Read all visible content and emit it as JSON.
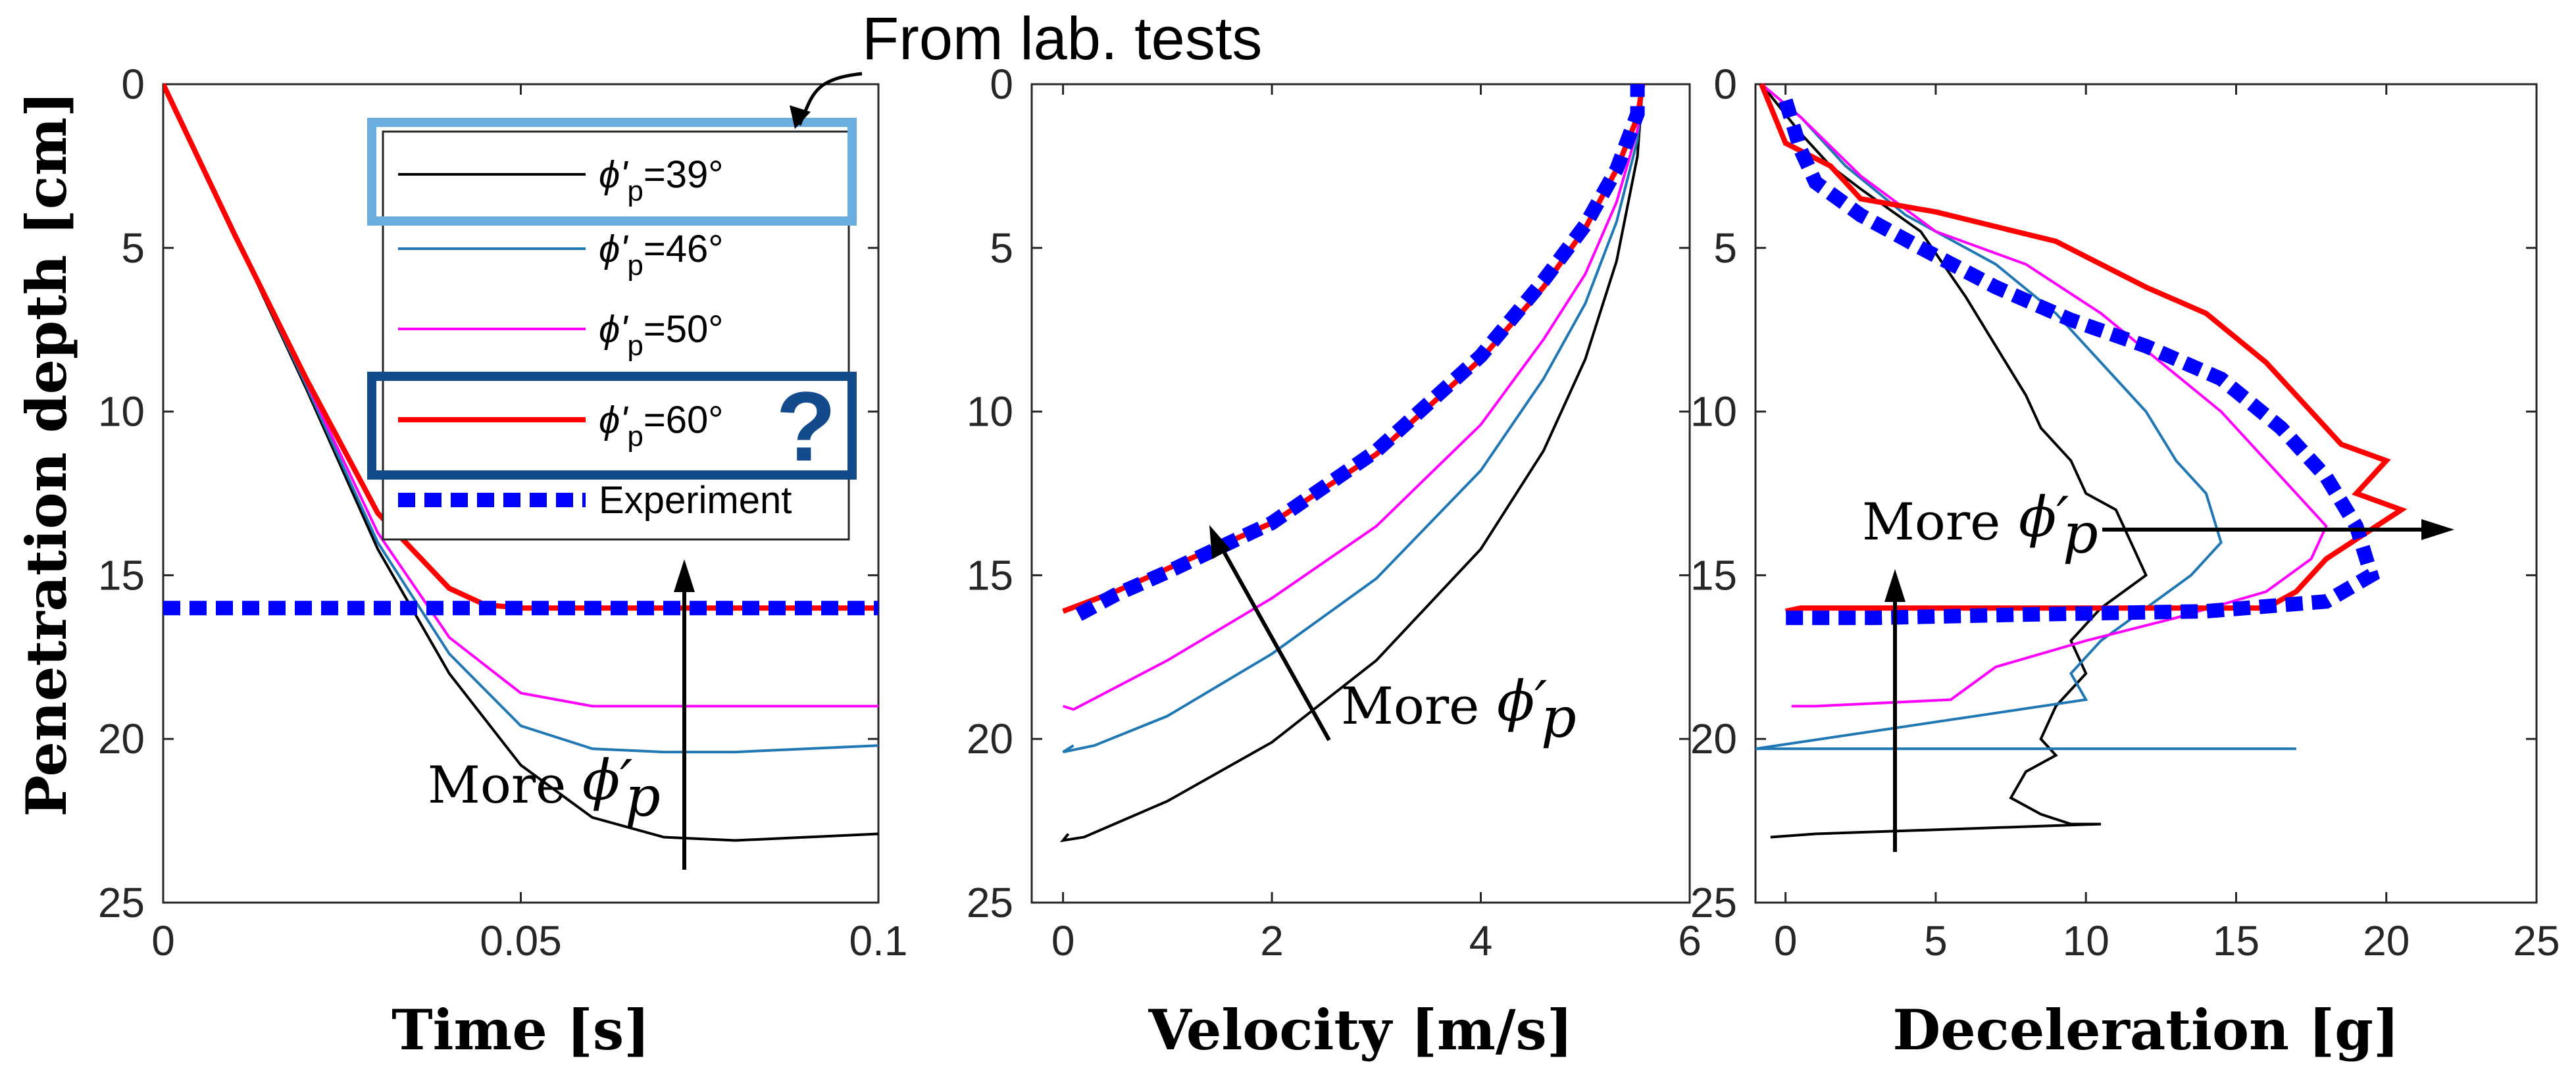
{
  "figure": {
    "annotation_top": "From lab. tests",
    "question_mark": "?",
    "more_phi_text": "More",
    "more_phi_symbol": "ϕ′",
    "more_phi_subscript": "p",
    "ylabel": "Penetration depth [cm]"
  },
  "legend": [
    {
      "prefix": "ϕ'",
      "sub": "p",
      "suffix": "=39°",
      "color": "#000000",
      "style": "solid"
    },
    {
      "prefix": "ϕ'",
      "sub": "p",
      "suffix": "=46°",
      "color": "#1f77b4",
      "style": "solid"
    },
    {
      "prefix": "ϕ'",
      "sub": "p",
      "suffix": "=50°",
      "color": "#ff00ff",
      "style": "solid"
    },
    {
      "prefix": "ϕ'",
      "sub": "p",
      "suffix": "=60°",
      "color": "#ff0000",
      "style": "solid"
    },
    {
      "prefix": "",
      "sub": "",
      "suffix": "Experiment",
      "color": "#0000ff",
      "style": "dotted"
    }
  ],
  "highlight_colors": {
    "lab_box": "#6aaee0",
    "question_box": "#124a8c"
  },
  "chart_data": [
    {
      "type": "line",
      "title": "",
      "xlabel": "Time [s]",
      "ylabel": "Penetration depth [cm]",
      "xlim": [
        0,
        0.1
      ],
      "ylim": [
        25,
        0
      ],
      "xticks": [
        "0",
        "0.05",
        "0.1"
      ],
      "yticks": [
        "0",
        "5",
        "10",
        "15",
        "20",
        "25"
      ],
      "series": [
        {
          "name": "ϕ'p=39°",
          "color": "#000000",
          "x": [
            0,
            0.01,
            0.02,
            0.03,
            0.04,
            0.05,
            0.06,
            0.07,
            0.08,
            0.09,
            0.1
          ],
          "y": [
            0,
            4.6,
            9.3,
            14.2,
            18.0,
            20.8,
            22.4,
            23.0,
            23.1,
            23.0,
            22.9
          ]
        },
        {
          "name": "ϕ'p=46°",
          "color": "#1f77b4",
          "x": [
            0,
            0.01,
            0.02,
            0.03,
            0.04,
            0.05,
            0.06,
            0.07,
            0.08,
            0.09,
            0.1
          ],
          "y": [
            0,
            4.6,
            9.2,
            14.0,
            17.4,
            19.6,
            20.3,
            20.4,
            20.4,
            20.3,
            20.2
          ]
        },
        {
          "name": "ϕ'p=50°",
          "color": "#ff00ff",
          "x": [
            0,
            0.01,
            0.02,
            0.03,
            0.04,
            0.05,
            0.06,
            0.07,
            0.08,
            0.09,
            0.1
          ],
          "y": [
            0,
            4.6,
            9.1,
            13.7,
            16.9,
            18.6,
            19.0,
            19.0,
            19.0,
            19.0,
            19.0
          ]
        },
        {
          "name": "ϕ'p=60°",
          "color": "#ff0000",
          "x": [
            0,
            0.01,
            0.02,
            0.03,
            0.04,
            0.045,
            0.05,
            0.06,
            0.07,
            0.08,
            0.1
          ],
          "y": [
            0,
            4.6,
            9.0,
            13.1,
            15.4,
            15.9,
            16.0,
            16.0,
            16.0,
            16.0,
            16.0
          ]
        },
        {
          "name": "Experiment",
          "color": "#0000ff",
          "dotted": true,
          "x": [
            0,
            0.1
          ],
          "y": [
            16,
            16
          ]
        }
      ]
    },
    {
      "type": "line",
      "title": "",
      "xlabel": "Velocity [m/s]",
      "ylabel": "",
      "xlim": [
        -0.3,
        6
      ],
      "ylim": [
        25,
        0
      ],
      "xticks": [
        "0",
        "2",
        "4",
        "6"
      ],
      "yticks": [
        "0",
        "5",
        "10",
        "15",
        "20",
        "25"
      ],
      "series": [
        {
          "name": "ϕ'p=39°",
          "color": "#000000",
          "x": [
            0.05,
            0.0,
            0.2,
            1.0,
            2.0,
            3.0,
            4.0,
            4.6,
            5.0,
            5.3,
            5.5,
            5.55
          ],
          "y": [
            22.9,
            23.1,
            23.0,
            21.9,
            20.1,
            17.6,
            14.2,
            11.2,
            8.4,
            5.4,
            2.2,
            0
          ]
        },
        {
          "name": "ϕ'p=46°",
          "color": "#1f77b4",
          "x": [
            0.1,
            0.0,
            0.3,
            1.0,
            2.0,
            3.0,
            4.0,
            4.6,
            5.0,
            5.3,
            5.5,
            5.55
          ],
          "y": [
            20.2,
            20.4,
            20.2,
            19.3,
            17.4,
            15.1,
            11.8,
            9.0,
            6.7,
            4.2,
            1.7,
            0
          ]
        },
        {
          "name": "ϕ'p=50°",
          "color": "#ff00ff",
          "x": [
            0.0,
            0.1,
            1.0,
            2.0,
            3.0,
            4.0,
            4.6,
            5.0,
            5.3,
            5.5,
            5.55
          ],
          "y": [
            19.0,
            19.1,
            17.6,
            15.7,
            13.5,
            10.4,
            7.8,
            5.8,
            3.6,
            1.4,
            0
          ]
        },
        {
          "name": "ϕ'p=60°",
          "color": "#ff0000",
          "x": [
            0.0,
            0.5,
            1.0,
            2.0,
            3.0,
            4.0,
            4.6,
            5.0,
            5.3,
            5.5,
            5.55
          ],
          "y": [
            16.1,
            15.5,
            14.8,
            13.4,
            11.3,
            8.4,
            6.2,
            4.4,
            2.6,
            1.0,
            0
          ]
        },
        {
          "name": "Experiment",
          "color": "#0000ff",
          "dotted": true,
          "x": [
            0.15,
            0.5,
            1.0,
            2.0,
            3.0,
            4.0,
            4.6,
            5.0,
            5.3,
            5.5,
            5.5
          ],
          "y": [
            16.2,
            15.6,
            14.9,
            13.4,
            11.2,
            8.3,
            6.0,
            4.3,
            2.6,
            0.9,
            0
          ]
        }
      ]
    },
    {
      "type": "line",
      "title": "",
      "xlabel": "Deceleration [g]",
      "ylabel": "",
      "xlim": [
        -1,
        25
      ],
      "ylim": [
        25,
        0
      ],
      "xticks": [
        "0",
        "5",
        "10",
        "15",
        "20",
        "25"
      ],
      "yticks": [
        "0",
        "5",
        "10",
        "15",
        "20",
        "25"
      ],
      "series": [
        {
          "name": "ϕ'p=39°",
          "color": "#000000",
          "x": [
            -0.8,
            0.5,
            1.5,
            2.5,
            4.5,
            6.0,
            7.0,
            8.0,
            8.5,
            9.5,
            10.0,
            11.0,
            11.5,
            12.0,
            10.5,
            9.5,
            10.0,
            9.0,
            8.5,
            9.0,
            8.0,
            7.5,
            8.5,
            9.5,
            10.5,
            1.0,
            -0.5
          ],
          "y": [
            0,
            1.5,
            2.5,
            3.2,
            4.5,
            6.5,
            8.0,
            9.5,
            10.5,
            11.5,
            12.5,
            13.0,
            14.0,
            15.0,
            16.0,
            17.0,
            18.0,
            19.0,
            20.0,
            20.5,
            21.0,
            21.8,
            22.3,
            22.6,
            22.6,
            22.9,
            23.0
          ]
        },
        {
          "name": "ϕ'p=46°",
          "color": "#1f77b4",
          "x": [
            -0.8,
            0.5,
            2.0,
            4.0,
            7.0,
            9.0,
            10.5,
            12.0,
            13.0,
            14.0,
            14.5,
            13.5,
            12.0,
            10.5,
            9.5,
            10.0,
            -1.0,
            17.0
          ],
          "y": [
            0,
            1.0,
            2.5,
            4.0,
            5.5,
            7.0,
            8.5,
            10.0,
            11.5,
            12.5,
            14.0,
            15.0,
            16.0,
            17.0,
            18.0,
            18.8,
            20.3,
            20.3
          ]
        },
        {
          "name": "ϕ'p=50°",
          "color": "#ff00ff",
          "x": [
            -0.8,
            0.5,
            2.5,
            5.0,
            8.0,
            10.5,
            12.5,
            14.5,
            16.0,
            17.0,
            18.0,
            17.5,
            16.0,
            13.0,
            10.0,
            7.0,
            5.5,
            1.0,
            0.2
          ],
          "y": [
            0,
            1.0,
            2.8,
            4.5,
            5.5,
            7.0,
            8.5,
            10.0,
            11.5,
            12.5,
            13.5,
            14.5,
            15.5,
            16.3,
            17.0,
            17.8,
            18.8,
            19.0,
            19.0
          ]
        },
        {
          "name": "ϕ'p=60°",
          "color": "#ff0000",
          "x": [
            -0.8,
            0.0,
            1.5,
            2.5,
            5.0,
            9.0,
            12.0,
            14.0,
            16.0,
            17.5,
            18.5,
            20.0,
            19.0,
            20.5,
            18.0,
            17.0,
            16.0,
            0.5,
            0.0
          ],
          "y": [
            0,
            1.8,
            2.5,
            3.5,
            3.9,
            4.8,
            6.2,
            7.0,
            8.5,
            10.0,
            11.0,
            11.5,
            12.5,
            13.0,
            14.5,
            15.5,
            16.0,
            16.0,
            16.1
          ]
        },
        {
          "name": "Experiment",
          "color": "#0000ff",
          "dotted": true,
          "x": [
            0.0,
            0.5,
            1.0,
            2.5,
            4.5,
            7.0,
            9.5,
            12.0,
            14.5,
            16.5,
            18.0,
            19.0,
            19.5,
            18.0,
            14.0,
            8.0,
            3.0,
            0.0
          ],
          "y": [
            0.5,
            2.0,
            3.0,
            4.0,
            5.0,
            6.2,
            7.2,
            8.0,
            9.0,
            10.5,
            12.0,
            13.5,
            15.0,
            15.8,
            16.1,
            16.2,
            16.3,
            16.3
          ]
        }
      ]
    }
  ]
}
